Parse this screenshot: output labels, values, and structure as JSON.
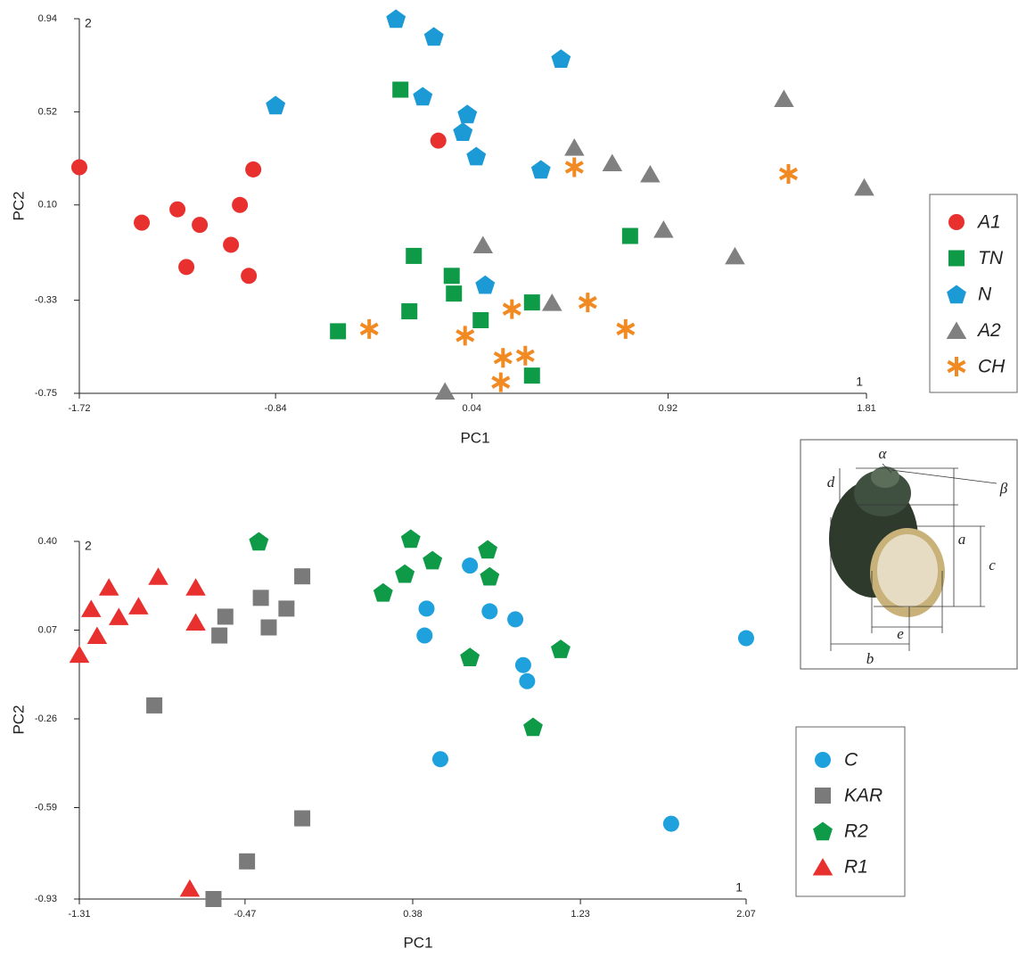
{
  "chart_data": [
    {
      "type": "scatter",
      "xlabel": "PC1",
      "ylabel": "PC2",
      "x_corner_label": "1",
      "y_corner_label": "2",
      "xlim": [
        -1.72,
        1.81
      ],
      "ylim": [
        -0.75,
        0.94
      ],
      "xticks": [
        -1.72,
        -0.84,
        0.04,
        0.92,
        1.81
      ],
      "yticks": [
        0.94,
        0.52,
        {
          "value": 0.1,
          "label": "0.10"
        },
        -0.33,
        -0.75
      ],
      "series": [
        {
          "name": "A1",
          "color": "#e8312f",
          "marker": "circle",
          "x": [
            -1.72,
            -1.44,
            -1.28,
            -1.18,
            -1.0,
            -0.94,
            -1.04,
            -1.24,
            -0.96,
            -0.11
          ],
          "y": [
            0.27,
            0.02,
            0.08,
            0.01,
            0.1,
            0.26,
            -0.08,
            -0.18,
            -0.22,
            0.39
          ]
        },
        {
          "name": "TN",
          "color": "#0f9a48",
          "marker": "square",
          "x": [
            -0.28,
            -0.22,
            -0.05,
            -0.04,
            -0.24,
            0.08,
            -0.56,
            0.31,
            0.75,
            0.31
          ],
          "y": [
            0.62,
            -0.13,
            -0.22,
            -0.3,
            -0.38,
            -0.42,
            -0.47,
            -0.34,
            -0.04,
            -0.67
          ]
        },
        {
          "name": "N",
          "color": "#1c9ad6",
          "marker": "pentagon",
          "x": [
            -0.3,
            -0.13,
            0.44,
            -0.84,
            -0.18,
            0.02,
            0.0,
            0.06,
            0.35,
            0.1
          ],
          "y": [
            0.94,
            0.86,
            0.76,
            0.55,
            0.59,
            0.51,
            0.43,
            0.32,
            0.26,
            -0.26
          ]
        },
        {
          "name": "A2",
          "color": "#808080",
          "marker": "triangle",
          "x": [
            1.44,
            1.8,
            0.5,
            0.67,
            0.84,
            0.9,
            1.22,
            0.09,
            0.4,
            -0.08
          ],
          "y": [
            0.58,
            0.18,
            0.36,
            0.29,
            0.24,
            -0.01,
            -0.13,
            -0.08,
            -0.34,
            -0.74
          ]
        },
        {
          "name": "CH",
          "color": "#f18a22",
          "marker": "asterisk",
          "x": [
            0.5,
            1.46,
            -0.42,
            0.01,
            0.22,
            0.56,
            0.73,
            0.18,
            0.28,
            0.17
          ],
          "y": [
            0.27,
            0.24,
            -0.46,
            -0.49,
            -0.37,
            -0.34,
            -0.46,
            -0.59,
            -0.58,
            -0.7
          ]
        }
      ]
    },
    {
      "type": "scatter",
      "xlabel": "PC1",
      "ylabel": "PC2",
      "x_corner_label": "1",
      "y_corner_label": "2",
      "xlim": [
        -1.31,
        2.07
      ],
      "ylim": [
        -0.93,
        0.4
      ],
      "xticks": [
        -1.31,
        -0.47,
        0.38,
        1.23,
        2.07
      ],
      "yticks": [
        {
          "value": 0.4,
          "label": "0.40"
        },
        0.07,
        -0.26,
        -0.59,
        -0.93
      ],
      "series": [
        {
          "name": "C",
          "color": "#1ea1dd",
          "marker": "circle",
          "x": [
            0.67,
            0.45,
            0.77,
            0.9,
            0.44,
            2.07,
            0.94,
            0.96,
            0.52,
            1.69
          ],
          "y": [
            0.31,
            0.15,
            0.14,
            0.11,
            0.05,
            0.04,
            -0.06,
            -0.12,
            -0.41,
            -0.65
          ]
        },
        {
          "name": "KAR",
          "color": "#7a7a7a",
          "marker": "square",
          "x": [
            -0.18,
            -0.39,
            -0.26,
            -0.57,
            -0.35,
            -0.6,
            -0.93,
            -0.18,
            -0.46,
            -0.63
          ],
          "y": [
            0.27,
            0.19,
            0.15,
            0.12,
            0.08,
            0.05,
            -0.21,
            -0.63,
            -0.79,
            -0.93
          ]
        },
        {
          "name": "R2",
          "color": "#0f9a48",
          "marker": "pentagon",
          "x": [
            -0.4,
            0.37,
            0.76,
            0.48,
            0.34,
            0.77,
            0.23,
            1.13,
            0.67,
            0.99
          ],
          "y": [
            0.4,
            0.41,
            0.37,
            0.33,
            0.28,
            0.27,
            0.21,
            0.0,
            -0.03,
            -0.29
          ]
        },
        {
          "name": "R1",
          "color": "#e8312f",
          "marker": "triangle",
          "x": [
            -0.91,
            -1.16,
            -0.72,
            -1.01,
            -1.25,
            -1.11,
            -0.72,
            -1.22,
            -1.31,
            -0.75
          ],
          "y": [
            0.27,
            0.23,
            0.23,
            0.16,
            0.15,
            0.12,
            0.1,
            0.05,
            -0.02,
            -0.89
          ]
        }
      ]
    }
  ],
  "inset_labels": {
    "alpha": "α",
    "beta": "β",
    "a": "a",
    "b": "b",
    "c": "c",
    "d": "d",
    "e": "e"
  }
}
